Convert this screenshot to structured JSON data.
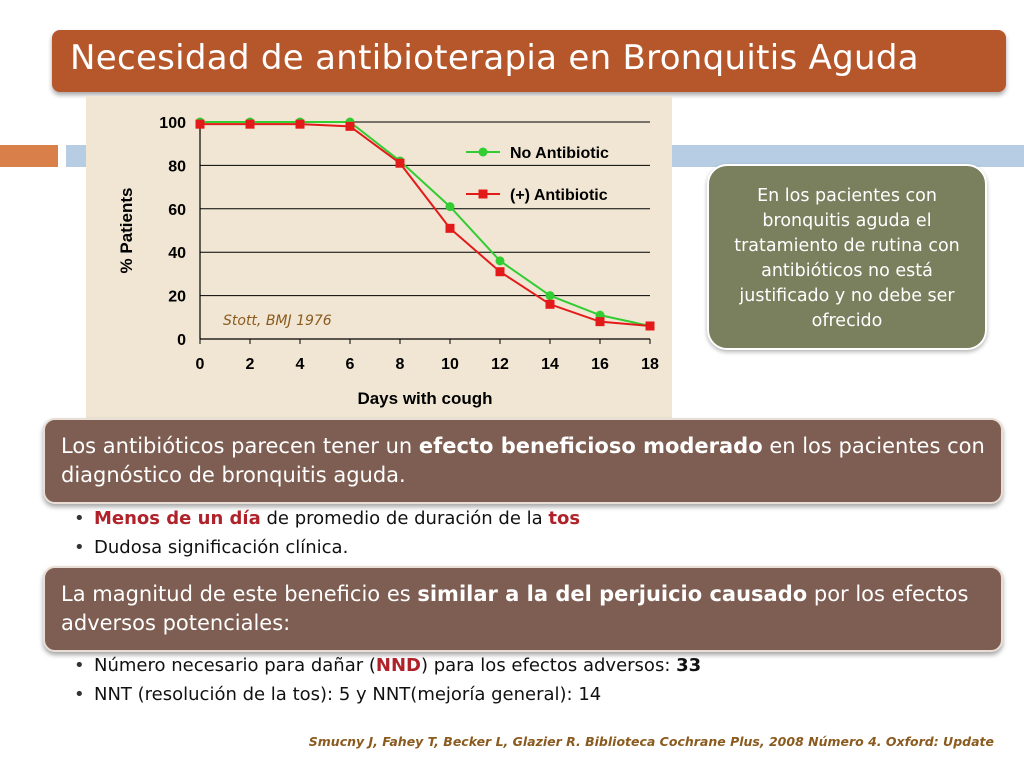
{
  "slide": {
    "title": "Necesidad de antibioterapia en Bronquitis Aguda",
    "colors": {
      "title_bg": "#b5572a",
      "box_bg": "#7e5e52",
      "callout_bg": "#7a7f5e",
      "chart_bg": "#f0e6d3"
    }
  },
  "chart_data": {
    "type": "line",
    "xlabel": "Days with cough",
    "ylabel": "% Patients",
    "x": [
      0,
      2,
      4,
      6,
      8,
      10,
      12,
      14,
      16,
      18
    ],
    "xlim": [
      0,
      18
    ],
    "ylim": [
      0,
      100
    ],
    "xticks": [
      0,
      2,
      4,
      6,
      8,
      10,
      12,
      14,
      16,
      18
    ],
    "yticks": [
      0,
      20,
      40,
      60,
      80,
      100
    ],
    "grid": "horizontal",
    "legend_position": "top-right",
    "annotation": "Stott, BMJ 1976",
    "series": [
      {
        "name": "No Antibiotic",
        "color": "#33cc33",
        "marker": "circle",
        "values": [
          100,
          100,
          100,
          100,
          82,
          61,
          36,
          20,
          11,
          6
        ]
      },
      {
        "name": "(+) Antibiotic",
        "color": "#e31a1a",
        "marker": "square",
        "values": [
          99,
          99,
          99,
          98,
          81,
          51,
          31,
          16,
          8,
          6
        ]
      }
    ]
  },
  "callout": {
    "text": "En los pacientes con bronquitis aguda el tratamiento de rutina con antibióticos no está justificado y no debe ser ofrecido"
  },
  "box1": {
    "pre": "Los antibióticos parecen tener un ",
    "bold": "efecto beneficioso moderado",
    "post": " en los pacientes con diagnóstico de bronquitis aguda."
  },
  "bullets1": [
    {
      "red": "Menos de un día",
      "mid": " de promedio de duración de la ",
      "red2": "tos"
    },
    {
      "text": "Dudosa significación clínica."
    }
  ],
  "box2": {
    "pre": "La magnitud de este beneficio es ",
    "bold": "similar a la del perjuicio causado",
    "post": " por los efectos adversos potenciales:"
  },
  "bullets2": [
    {
      "pre": "Número necesario para dañar (",
      "red": "NND",
      "mid": ") para los efectos adversos: ",
      "bold": "33"
    },
    {
      "text": "NNT (resolución de la tos): 5 y  NNT(mejoría general): 14"
    }
  ],
  "citation": "Smucny J, Fahey T, Becker L, Glazier R. Biblioteca Cochrane Plus, 2008 Número 4. Oxford: Update"
}
